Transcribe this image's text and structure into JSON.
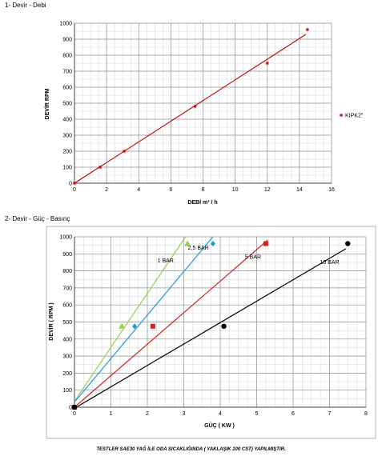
{
  "sections": {
    "chart1_title": "1- Devir - Debi",
    "chart2_title": "2- Devir - Güç - Basınç"
  },
  "footer_note": "TESTLER SAE30 YAĞ İLE ODA SICAKLIĞINDA ( YAKLAŞIK 100 CST) YAPILMIŞTIR.",
  "chart_data": [
    {
      "type": "scatter",
      "title": "",
      "xlabel": "DEBİ m³ / h",
      "ylabel": "DEVİR RPM",
      "xlim": [
        0,
        16
      ],
      "ylim": [
        0,
        1000
      ],
      "xticks": [
        0,
        2,
        4,
        6,
        8,
        10,
        12,
        14,
        16
      ],
      "yticks": [
        0,
        100,
        200,
        300,
        400,
        500,
        600,
        700,
        800,
        900,
        1000
      ],
      "grid": true,
      "legend": "right",
      "series": [
        {
          "name": "KIPK2\"",
          "color": "#c00000",
          "marker": "star",
          "x": [
            0,
            1.6,
            3.1,
            7.5,
            12,
            14.5
          ],
          "y": [
            0,
            100,
            200,
            480,
            750,
            960
          ]
        }
      ],
      "trendlines": [
        {
          "color": "#c00000",
          "x": [
            0,
            14.4
          ],
          "y": [
            0,
            930
          ]
        }
      ]
    },
    {
      "type": "scatter",
      "title": "",
      "xlabel": "GÜÇ ( KW )",
      "ylabel": "DEVİR ( RPM )",
      "xlim": [
        0,
        8
      ],
      "ylim": [
        0,
        1000
      ],
      "xticks": [
        0,
        1,
        2,
        3,
        4,
        5,
        6,
        7,
        8
      ],
      "yticks": [
        0,
        100,
        200,
        300,
        400,
        500,
        600,
        700,
        800,
        900,
        1000
      ],
      "grid": true,
      "legend": "none",
      "series": [
        {
          "name": "1 BAR",
          "color": "#92d050",
          "marker": "triangle",
          "x": [
            0,
            1.3,
            3.1
          ],
          "y": [
            0,
            475,
            960
          ],
          "line": {
            "x": [
              0,
              3.05
            ],
            "y": [
              35,
              1000
            ]
          },
          "label_at": [
            2.5,
            850
          ]
        },
        {
          "name": "2,5 BAR",
          "color": "#1c9ad6",
          "marker": "diamond",
          "x": [
            0,
            1.65,
            3.8
          ],
          "y": [
            0,
            475,
            960
          ],
          "line": {
            "x": [
              0,
              3.8
            ],
            "y": [
              30,
              1000
            ]
          },
          "label_at": [
            3.4,
            925
          ]
        },
        {
          "name": "5 BAR",
          "color": "#d42020",
          "marker": "square",
          "x": [
            0,
            2.15,
            5.25
          ],
          "y": [
            0,
            475,
            960
          ],
          "line": {
            "x": [
              0,
              5.3
            ],
            "y": [
              0,
              980
            ]
          },
          "label_at": [
            4.9,
            870
          ]
        },
        {
          "name": "10 BAR",
          "color": "#000000",
          "marker": "circle",
          "x": [
            0,
            4.1,
            7.5
          ],
          "y": [
            0,
            475,
            960
          ],
          "line": {
            "x": [
              0.05,
              7.45
            ],
            "y": [
              0,
              930
            ]
          },
          "label_at": [
            7.0,
            840
          ]
        }
      ]
    }
  ]
}
